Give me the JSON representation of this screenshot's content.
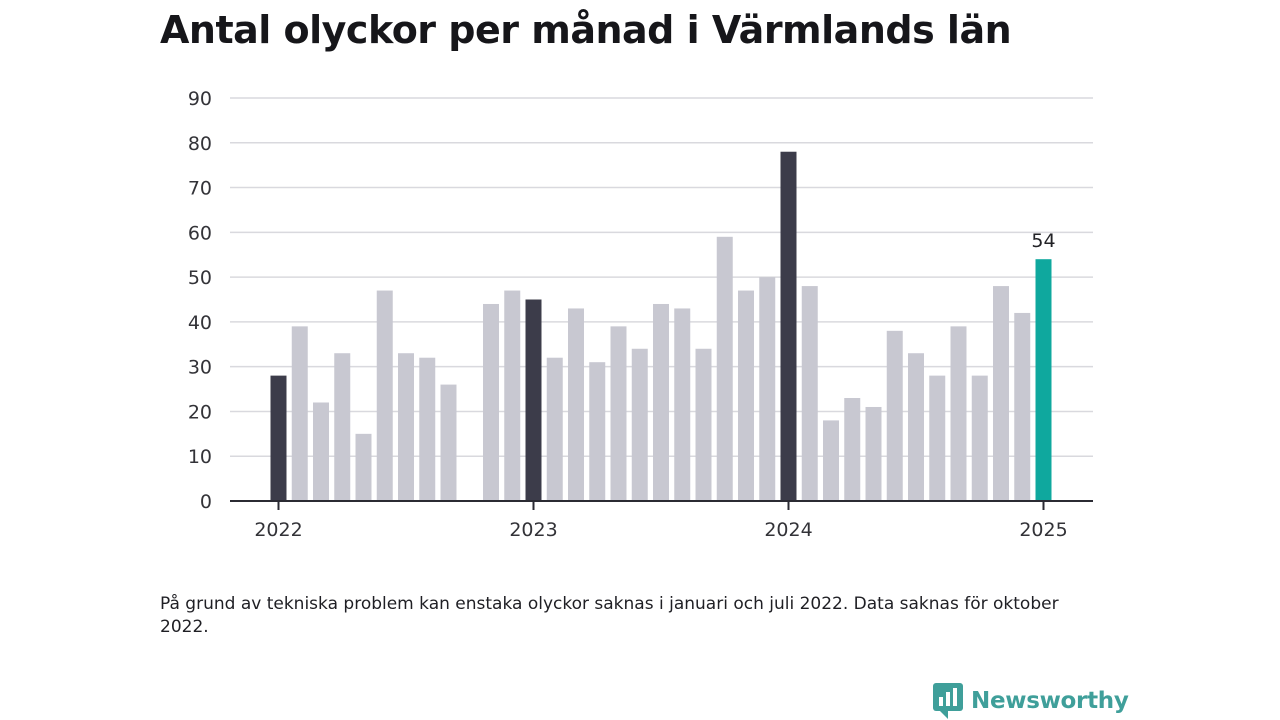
{
  "title": "Antal olyckor per månad i Värmlands län",
  "footnote": "På grund av tekniska problem kan enstaka olyckor saknas i januari och juli 2022. Data saknas för oktober 2022.",
  "brand": {
    "name": "Newsworthy",
    "icon": "newsworthy-logo-icon",
    "color": "#3f9f9a"
  },
  "colors": {
    "regular": "#c8c8d1",
    "january": "#3c3c4a",
    "latest": "#0fa89e",
    "grid": "#d9d9de",
    "axis": "#2b2b33"
  },
  "chart_data": {
    "type": "bar",
    "title": "Antal olyckor per månad i Värmlands län",
    "xlabel": "",
    "ylabel": "",
    "ylim": [
      0,
      90
    ],
    "yticks": [
      0,
      10,
      20,
      30,
      40,
      50,
      60,
      70,
      80,
      90
    ],
    "grid": true,
    "x_ticks": [
      "2022",
      "2023",
      "2024",
      "2025"
    ],
    "annotation": {
      "category": "2025-01",
      "text": "54"
    },
    "categories": [
      "2022-01",
      "2022-02",
      "2022-03",
      "2022-04",
      "2022-05",
      "2022-06",
      "2022-07",
      "2022-08",
      "2022-09",
      "2022-10",
      "2022-11",
      "2022-12",
      "2023-01",
      "2023-02",
      "2023-03",
      "2023-04",
      "2023-05",
      "2023-06",
      "2023-07",
      "2023-08",
      "2023-09",
      "2023-10",
      "2023-11",
      "2023-12",
      "2024-01",
      "2024-02",
      "2024-03",
      "2024-04",
      "2024-05",
      "2024-06",
      "2024-07",
      "2024-08",
      "2024-09",
      "2024-10",
      "2024-11",
      "2024-12",
      "2025-01"
    ],
    "values": [
      28,
      39,
      22,
      33,
      15,
      47,
      33,
      32,
      26,
      null,
      44,
      47,
      45,
      32,
      43,
      31,
      39,
      34,
      44,
      43,
      34,
      59,
      47,
      50,
      78,
      48,
      18,
      23,
      21,
      38,
      33,
      28,
      39,
      28,
      48,
      42,
      54
    ],
    "highlight": {
      "january": "dark",
      "latest": "teal"
    }
  }
}
